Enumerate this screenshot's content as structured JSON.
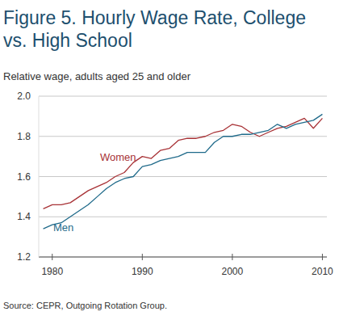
{
  "chart_data": {
    "type": "line",
    "title": "Figure 5. Hourly Wage Rate, College vs. High School",
    "subtitle": "Relative wage, adults aged 25 and older",
    "source": "Source: CEPR, Outgoing Rotation Group.",
    "x": [
      1979,
      1980,
      1981,
      1982,
      1983,
      1984,
      1985,
      1986,
      1987,
      1988,
      1989,
      1990,
      1991,
      1992,
      1993,
      1994,
      1995,
      1996,
      1997,
      1998,
      1999,
      2000,
      2001,
      2002,
      2003,
      2004,
      2005,
      2006,
      2007,
      2008,
      2009,
      2010
    ],
    "series": [
      {
        "name": "Women",
        "color": "#a83236",
        "values": [
          1.44,
          1.46,
          1.46,
          1.47,
          1.5,
          1.53,
          1.55,
          1.57,
          1.6,
          1.62,
          1.67,
          1.7,
          1.69,
          1.73,
          1.74,
          1.78,
          1.79,
          1.79,
          1.8,
          1.82,
          1.83,
          1.86,
          1.85,
          1.82,
          1.8,
          1.82,
          1.84,
          1.85,
          1.87,
          1.89,
          1.84,
          1.89
        ]
      },
      {
        "name": "Men",
        "color": "#1f6a8a",
        "values": [
          1.34,
          1.36,
          1.37,
          1.4,
          1.43,
          1.46,
          1.5,
          1.54,
          1.57,
          1.59,
          1.6,
          1.65,
          1.66,
          1.68,
          1.69,
          1.7,
          1.72,
          1.72,
          1.72,
          1.77,
          1.8,
          1.8,
          1.81,
          1.81,
          1.82,
          1.83,
          1.86,
          1.84,
          1.86,
          1.87,
          1.88,
          1.91
        ]
      }
    ],
    "xlim": [
      1978.5,
      2010.5
    ],
    "xticks": [
      1980,
      1990,
      2000,
      2010
    ],
    "ylim": [
      1.2,
      2.0
    ],
    "yticks": [
      {
        "value": 1.2,
        "label": "1.2"
      },
      {
        "value": 1.4,
        "label": "1.4"
      },
      {
        "value": 1.6,
        "label": "1.6"
      },
      {
        "value": 1.8,
        "label": "1.8"
      },
      {
        "value": 2.0,
        "label": "2.0"
      }
    ],
    "grid": true
  }
}
